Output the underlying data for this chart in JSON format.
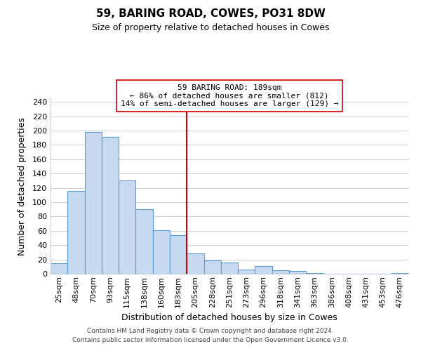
{
  "title": "59, BARING ROAD, COWES, PO31 8DW",
  "subtitle": "Size of property relative to detached houses in Cowes",
  "xlabel": "Distribution of detached houses by size in Cowes",
  "ylabel": "Number of detached properties",
  "bar_labels": [
    "25sqm",
    "48sqm",
    "70sqm",
    "93sqm",
    "115sqm",
    "138sqm",
    "160sqm",
    "183sqm",
    "205sqm",
    "228sqm",
    "251sqm",
    "273sqm",
    "296sqm",
    "318sqm",
    "341sqm",
    "363sqm",
    "386sqm",
    "408sqm",
    "431sqm",
    "453sqm",
    "476sqm"
  ],
  "bar_values": [
    15,
    116,
    198,
    191,
    130,
    90,
    61,
    54,
    28,
    19,
    16,
    6,
    11,
    5,
    4,
    1,
    0,
    0,
    0,
    0,
    1
  ],
  "bar_color": "#c6d9f0",
  "bar_edge_color": "#5b9bd5",
  "vline_x": 7.5,
  "vline_color": "#cc0000",
  "annotation_line1": "59 BARING ROAD: 189sqm",
  "annotation_line2": "← 86% of detached houses are smaller (812)",
  "annotation_line3": "14% of semi-detached houses are larger (129) →",
  "ylim": [
    0,
    245
  ],
  "yticks": [
    0,
    20,
    40,
    60,
    80,
    100,
    120,
    140,
    160,
    180,
    200,
    220,
    240
  ],
  "footer_line1": "Contains HM Land Registry data © Crown copyright and database right 2024.",
  "footer_line2": "Contains public sector information licensed under the Open Government Licence v3.0.",
  "background_color": "#ffffff",
  "grid_color": "#c8d0dc",
  "title_fontsize": 11,
  "subtitle_fontsize": 9,
  "annotation_fontsize": 8,
  "xlabel_fontsize": 9,
  "ylabel_fontsize": 9,
  "footer_fontsize": 6.5,
  "tick_fontsize": 8
}
